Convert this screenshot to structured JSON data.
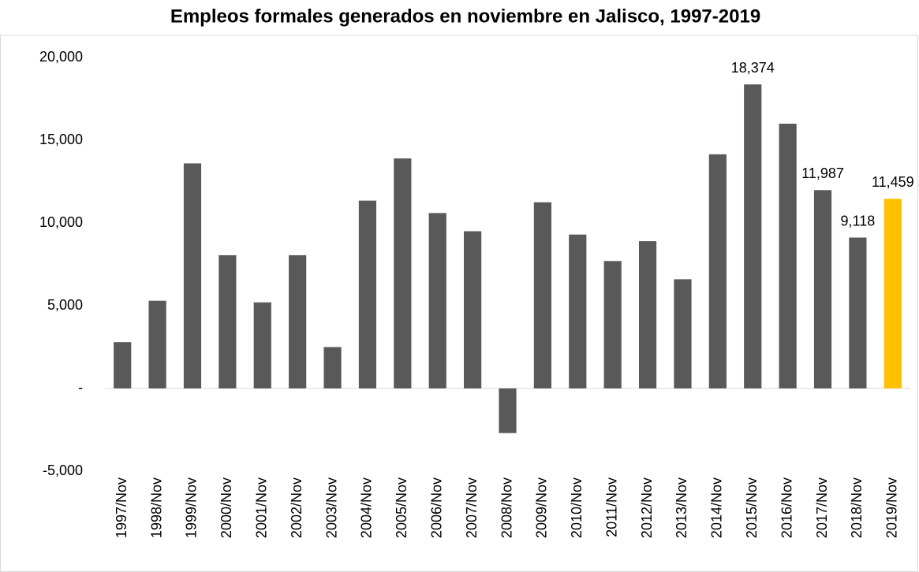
{
  "chart_data": {
    "type": "bar",
    "title": "Empleos formales generados en noviembre en Jalisco, 1997-2019",
    "categories": [
      "1997/Nov",
      "1998/Nov",
      "1999/Nov",
      "2000/Nov",
      "2001/Nov",
      "2002/Nov",
      "2003/Nov",
      "2004/Nov",
      "2005/Nov",
      "2006/Nov",
      "2007/Nov",
      "2008/Nov",
      "2009/Nov",
      "2010/Nov",
      "2011/Nov",
      "2012/Nov",
      "2013/Nov",
      "2014/Nov",
      "2015/Nov",
      "2016/Nov",
      "2017/Nov",
      "2018/Nov",
      "2019/Nov"
    ],
    "values": [
      2800,
      5300,
      13600,
      8050,
      5200,
      8050,
      2500,
      11350,
      13900,
      10600,
      9500,
      -2700,
      11250,
      9300,
      7700,
      8900,
      6600,
      14150,
      18374,
      16000,
      11987,
      9118,
      11459
    ],
    "value_labels": [
      null,
      null,
      null,
      null,
      null,
      null,
      null,
      null,
      null,
      null,
      null,
      null,
      null,
      null,
      null,
      null,
      null,
      null,
      "18,374",
      null,
      "11,987",
      "9,118",
      "11,459"
    ],
    "colors": [
      "#595959",
      "#595959",
      "#595959",
      "#595959",
      "#595959",
      "#595959",
      "#595959",
      "#595959",
      "#595959",
      "#595959",
      "#595959",
      "#595959",
      "#595959",
      "#595959",
      "#595959",
      "#595959",
      "#595959",
      "#595959",
      "#595959",
      "#595959",
      "#595959",
      "#595959",
      "#ffc000"
    ],
    "ylim": [
      -5000,
      20000
    ],
    "yticks": [
      {
        "value": -5000,
        "label": "-5,000"
      },
      {
        "value": 0,
        "label": "-"
      },
      {
        "value": 5000,
        "label": "5,000"
      },
      {
        "value": 10000,
        "label": "10,000"
      },
      {
        "value": 15000,
        "label": "15,000"
      },
      {
        "value": 20000,
        "label": "20,000"
      }
    ],
    "grid": false
  }
}
